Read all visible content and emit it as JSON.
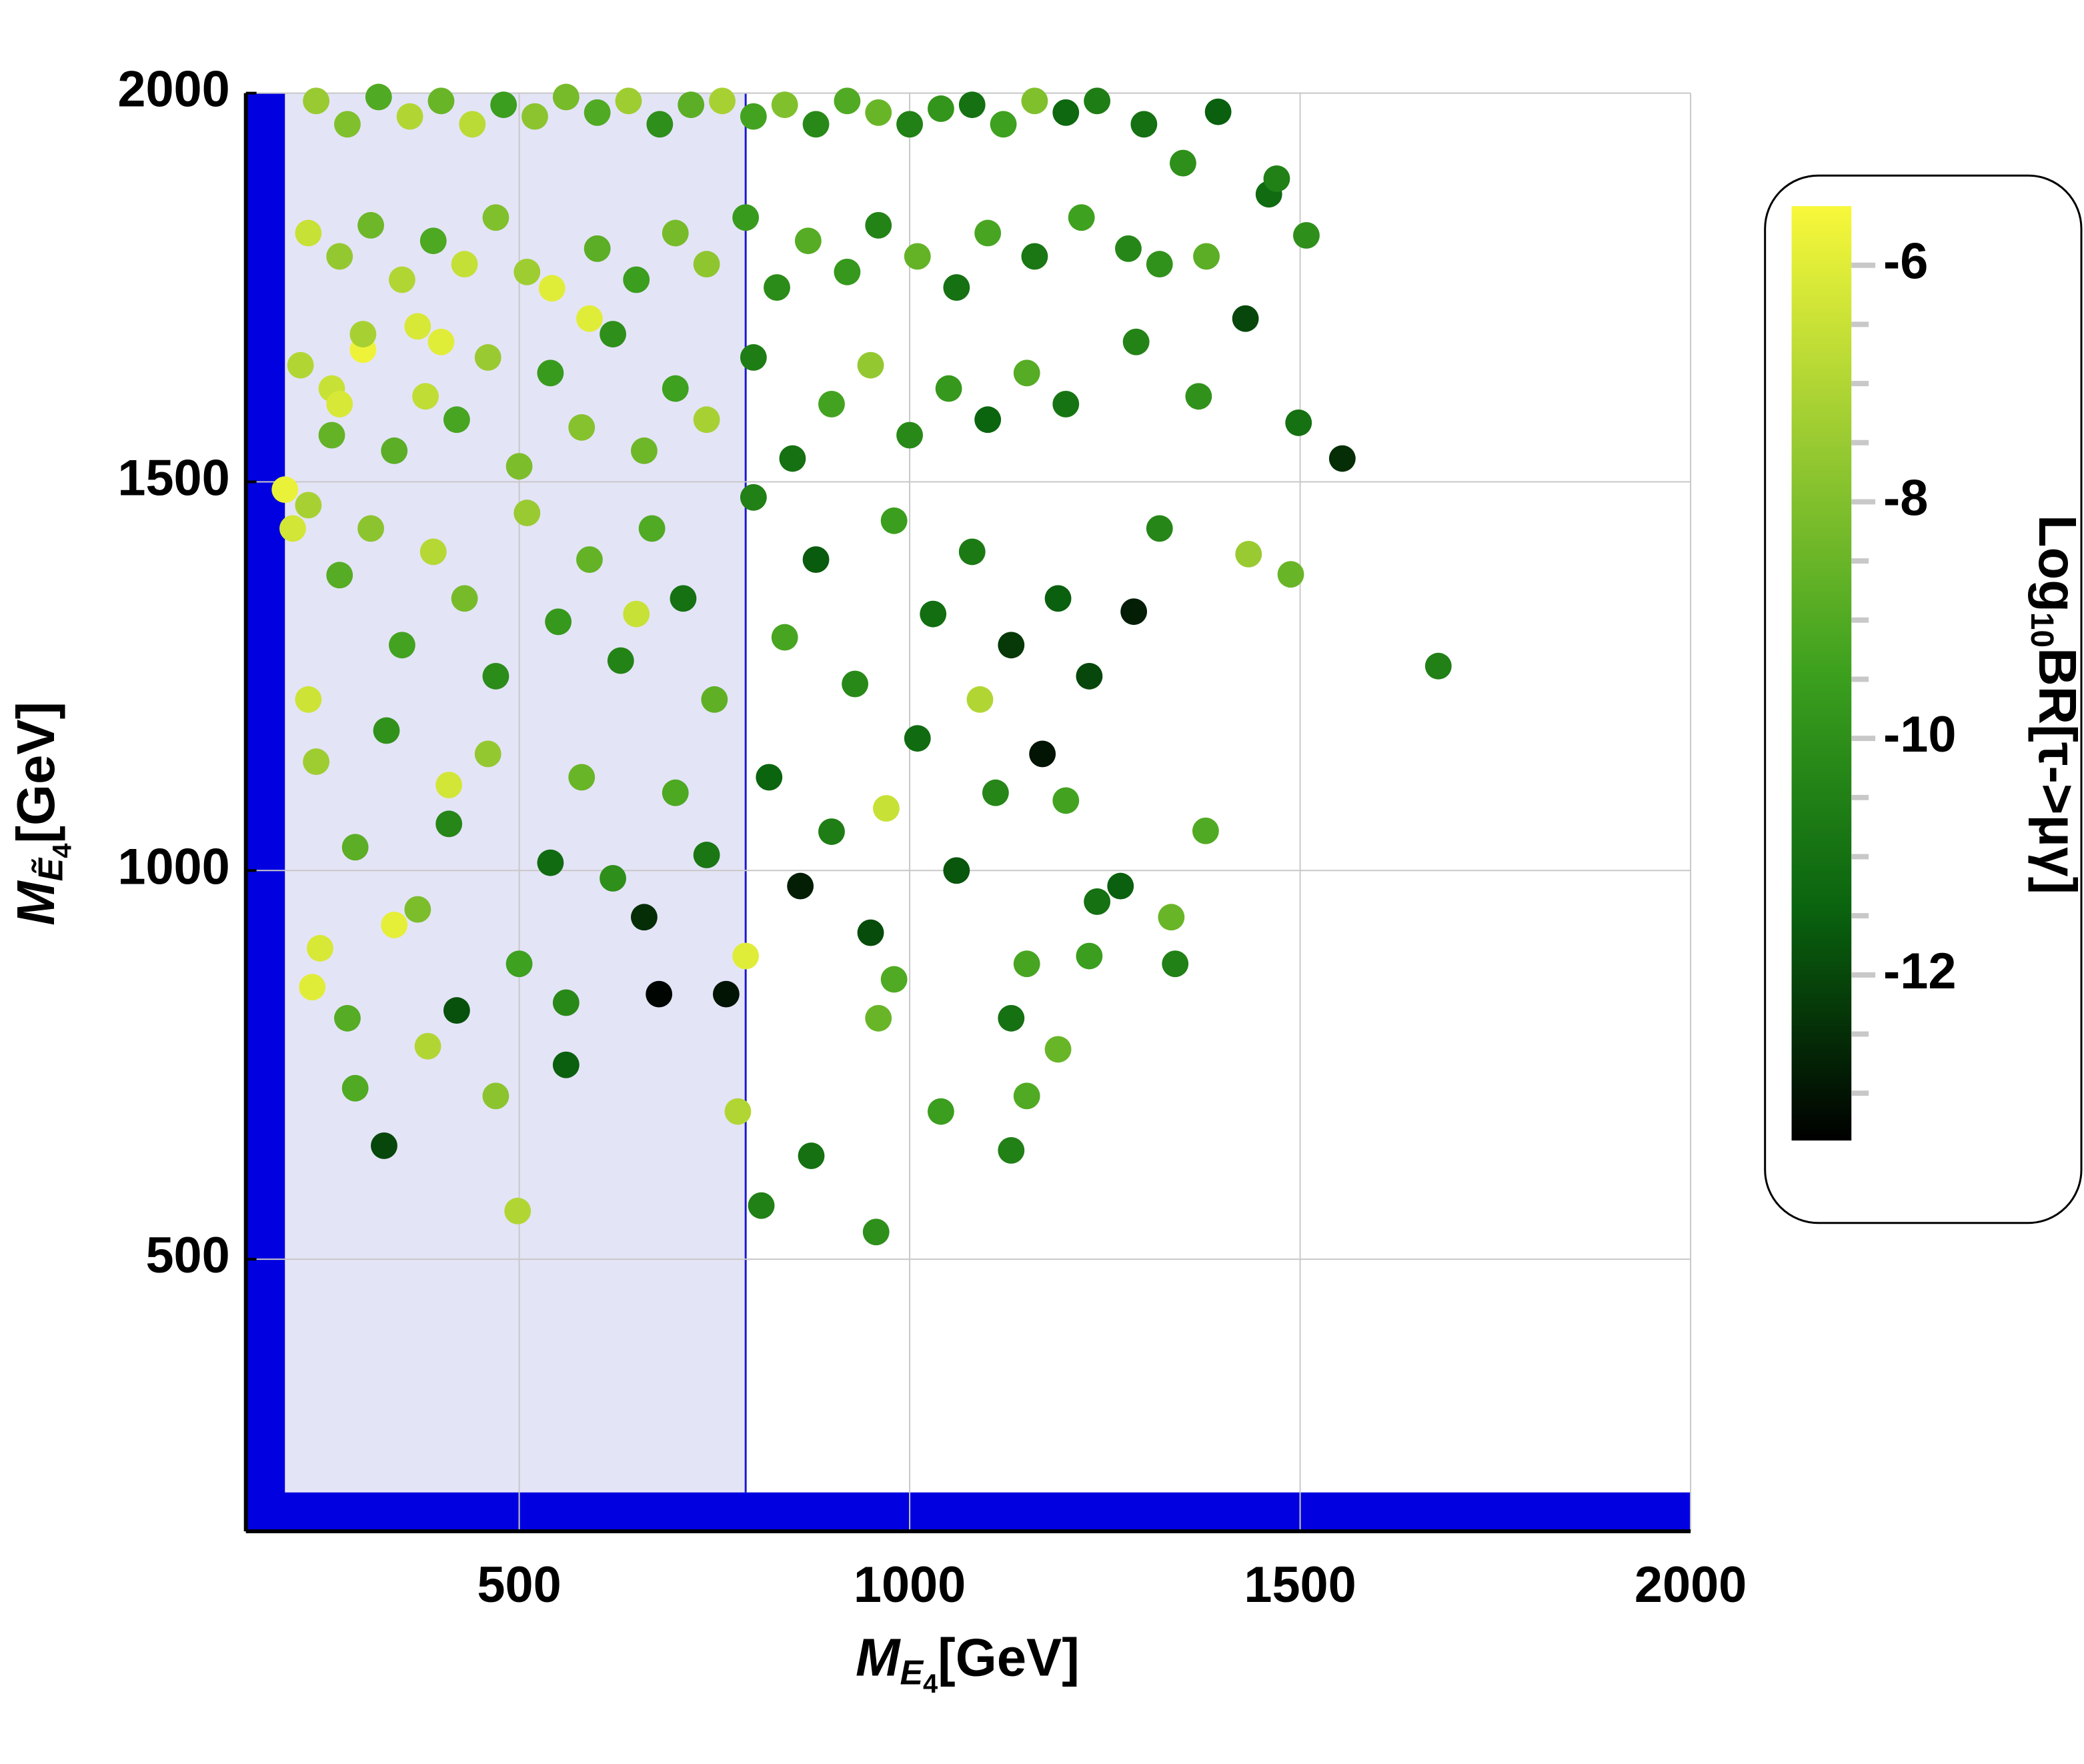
{
  "chart_data": {
    "type": "scatter",
    "x_label": {
      "symbol": "M",
      "sub": "E",
      "subsub": "4",
      "unit": "[GeV]"
    },
    "y_label": {
      "symbol": "M",
      "sub": "Ẽ",
      "subsub": "4",
      "unit": "[GeV]"
    },
    "colorbar_label": {
      "pre": "Log",
      "sub": "10",
      "post": "BR[τ->μγ]"
    },
    "xlim": [
      150,
      2000
    ],
    "ylim": [
      150,
      2000
    ],
    "xticks": [
      500,
      1000,
      1500,
      2000
    ],
    "yticks": [
      500,
      1000,
      1500,
      2000
    ],
    "grid": true,
    "clim": [
      -13.4,
      -5.5
    ],
    "cticks": [
      -6,
      -8,
      -10,
      -12
    ],
    "cminor_ticks": [
      -6.5,
      -7,
      -7.5,
      -8.5,
      -9,
      -9.5,
      -10.5,
      -11,
      -11.5,
      -12.5,
      -13
    ],
    "colormap": [
      "#000000",
      "#0a640f",
      "#3ca01e",
      "#9acb32",
      "#f8f83a"
    ],
    "regions": [
      {
        "x": [
          200,
          790
        ],
        "y": [
          200,
          2000
        ],
        "color": "#e4e4f7"
      },
      {
        "x": [
          150,
          200
        ],
        "y": [
          150,
          2000
        ],
        "color": "#0000e0"
      },
      {
        "x": [
          150,
          2000
        ],
        "y": [
          150,
          200
        ],
        "color": "#0000e0"
      }
    ],
    "vline": {
      "x": 790,
      "y": [
        200,
        2000
      ],
      "color": "#1a1ad0"
    },
    "x": [
      1677,
      1554,
      1498,
      1508,
      1395,
      1379,
      1434,
      1488,
      1287,
      1340,
      1335,
      1270,
      957,
      874,
      810,
      327,
      498,
      383,
      679,
      765,
      1040,
      1130,
      1150,
      1190,
      1130,
      1230,
      980,
      960,
      542,
      200,
      210,
      230,
      245,
      235,
      340,
      300,
      260,
      270,
      400,
      590,
      370,
      650,
      410,
      790,
      780,
      970,
      1090,
      240,
      280,
      320,
      360,
      400,
      440,
      480,
      520,
      560,
      600,
      640,
      680,
      720,
      760,
      800,
      840,
      880,
      920,
      960,
      1000,
      1040,
      1080,
      1120,
      1160,
      1200,
      1240,
      1300,
      1350,
      1460,
      1470,
      230,
      270,
      310,
      350,
      390,
      430,
      470,
      510,
      600,
      650,
      700,
      740,
      790,
      830,
      870,
      920,
      960,
      1010,
      1060,
      1100,
      1160,
      1220,
      1280,
      1320,
      1380,
      1430,
      220,
      260,
      300,
      340,
      380,
      420,
      460,
      500,
      540,
      580,
      620,
      660,
      700,
      740,
      800,
      850,
      900,
      950,
      1000,
      1050,
      1100,
      1150,
      1200,
      1290,
      1370,
      230,
      270,
      310,
      350,
      390,
      430,
      470,
      510,
      550,
      590,
      630,
      670,
      710,
      750,
      800,
      840,
      880,
      930,
      980,
      1030,
      1080,
      1130,
      1190,
      1230,
      1320,
      240,
      290,
      330,
      370,
      410,
      460,
      500,
      540,
      580,
      620,
      660,
      700,
      740,
      820,
      860,
      900,
      950,
      1010,
      1060,
      1110,
      1170,
      1200,
      1240,
      1150,
      280,
      420,
      560,
      470,
      560,
      290
    ],
    "y": [
      1263,
      1530,
      1576,
      1817,
      1976,
      1051,
      1407,
      1381,
      1333,
      880,
      940,
      980,
      535,
      633,
      569,
      646,
      562,
      774,
      841,
      841,
      690,
      640,
      710,
      770,
      810,
      890,
      860,
      810,
      1749,
      1490,
      1440,
      1220,
      900,
      850,
      930,
      1670,
      1620,
      1600,
      1680,
      1710,
      1700,
      1330,
      1110,
      890,
      690,
      1080,
      1220,
      1990,
      1960,
      1995,
      1970,
      1990,
      1960,
      1985,
      1970,
      1995,
      1975,
      1990,
      1960,
      1985,
      1990,
      1970,
      1985,
      1960,
      1990,
      1975,
      1960,
      1980,
      1985,
      1960,
      1990,
      1975,
      1990,
      1960,
      1910,
      1870,
      1890,
      1820,
      1790,
      1830,
      1760,
      1810,
      1780,
      1840,
      1770,
      1800,
      1760,
      1820,
      1780,
      1840,
      1750,
      1810,
      1770,
      1830,
      1790,
      1750,
      1820,
      1790,
      1840,
      1800,
      1780,
      1790,
      1710,
      1650,
      1560,
      1690,
      1540,
      1610,
      1580,
      1660,
      1520,
      1640,
      1570,
      1690,
      1540,
      1620,
      1580,
      1660,
      1530,
      1600,
      1650,
      1560,
      1620,
      1580,
      1640,
      1600,
      1680,
      1610,
      1470,
      1380,
      1440,
      1290,
      1410,
      1350,
      1250,
      1460,
      1320,
      1400,
      1270,
      1440,
      1350,
      1220,
      1480,
      1300,
      1400,
      1240,
      1450,
      1330,
      1410,
      1290,
      1350,
      1250,
      1440,
      1140,
      1030,
      1180,
      950,
      1060,
      1150,
      880,
      1010,
      1120,
      990,
      940,
      1100,
      1020,
      1120,
      980,
      1050,
      920,
      1170,
      1000,
      1100,
      1150,
      1090,
      960,
      880,
      810,
      820,
      830,
      710,
      750,
      720
    ],
    "c": [
      -10.5,
      -12.5,
      -11,
      -10,
      -11.5,
      -9,
      -7.5,
      -8.5,
      -12.8,
      -10.5,
      -8.5,
      -11.5,
      -10,
      -11,
      -10.5,
      -12,
      -7,
      -7,
      -13.3,
      -13,
      -9.5,
      -10.5,
      -9,
      -8.5,
      -11,
      -9.5,
      -9,
      -8.5,
      -6,
      -5.8,
      -6.3,
      -6.4,
      -6.2,
      -6,
      -5.9,
      -5.7,
      -6.5,
      -6.2,
      -6,
      -6,
      -6.2,
      -6.5,
      -6.3,
      -6,
      -7,
      -6.5,
      -7,
      -7.5,
      -8,
      -9,
      -7,
      -8.5,
      -6.8,
      -9.5,
      -7.8,
      -8.2,
      -9,
      -7.4,
      -10,
      -8.8,
      -7.2,
      -9.3,
      -8,
      -10.2,
      -9,
      -8.5,
      -10.5,
      -9.8,
      -11,
      -9.4,
      -8,
      -11.3,
      -10.6,
      -11,
      -10,
      -11.2,
      -10.5,
      -6.5,
      -7.6,
      -8.4,
      -7,
      -9.1,
      -6.6,
      -8,
      -7.4,
      -8.8,
      -9.5,
      -8.2,
      -7.7,
      -9.6,
      -10.1,
      -8.9,
      -9.7,
      -10.4,
      -8.6,
      -11,
      -9.2,
      -10.8,
      -9.4,
      -10.3,
      -9.9,
      -8.8,
      -12,
      -7,
      -8.6,
      -7.2,
      -8.8,
      -6.7,
      -9.2,
      -7.5,
      -8.1,
      -9.6,
      -7.9,
      -10,
      -8.4,
      -9.4,
      -7.2,
      -10.6,
      -11,
      -9.3,
      -7.6,
      -10.2,
      -9.7,
      -11.4,
      -8.9,
      -10.9,
      -10.4,
      -9.9,
      -7.2,
      -8.9,
      -7.8,
      -9.3,
      -6.9,
      -8.2,
      -10.1,
      -7.5,
      -9.7,
      -8.6,
      -10.4,
      -9,
      -11,
      -8.7,
      -10.5,
      -9.2,
      -11.6,
      -10.2,
      -9.5,
      -11.1,
      -10.7,
      -12.3,
      -11.5,
      -12,
      -10.3,
      -7.4,
      -8.8,
      -9.9,
      -8.1,
      -10.3,
      -7.6,
      -9.4,
      -11.2,
      -8.5,
      -10,
      -12.5,
      -9.1,
      -10.8,
      -11.4,
      -12.8,
      -10.6,
      -11.9,
      -11.2,
      -11.7,
      -10.3,
      -13,
      -9.3,
      -11,
      -9.2,
      -8.9,
      -11.8,
      -10.2,
      -7.8,
      -11.5,
      -9
    ]
  }
}
